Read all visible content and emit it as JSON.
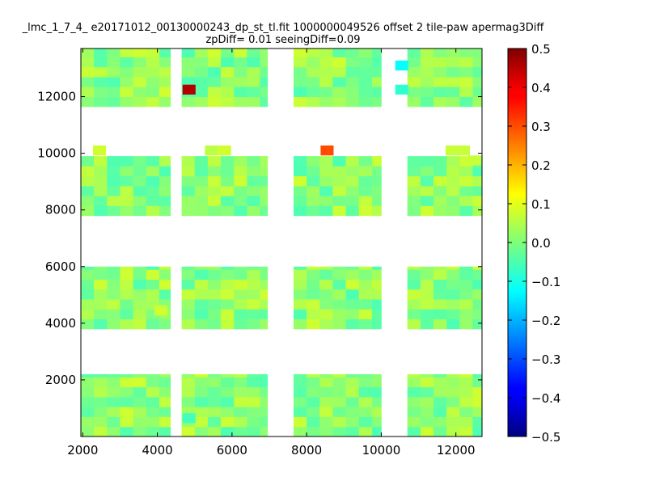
{
  "chart_data": {
    "type": "heatmap",
    "title": "_lmc_1_7_4_ e20171012_00130000243_dp_st_tl.fit 1000000049526 offset 2 tile-paw apermag3Diff",
    "subtitle": "zpDiff= 0.01 seeingDiff=0.09",
    "xlabel": "",
    "ylabel": "",
    "xlim": [
      1950,
      12700
    ],
    "ylim": [
      0,
      13700
    ],
    "x_ticks": [
      "2000",
      "4000",
      "6000",
      "8000",
      "10000",
      "12000"
    ],
    "y_ticks": [
      "2000",
      "4000",
      "6000",
      "8000",
      "10000",
      "12000"
    ],
    "colorbar": {
      "colormap": "jet",
      "range": [
        -0.5,
        0.5
      ],
      "ticks": [
        "0.5",
        "0.4",
        "0.3",
        "0.2",
        "0.1",
        "0.0",
        "−0.1",
        "−0.2",
        "−0.3",
        "−0.4",
        "−0.5"
      ]
    },
    "grid": false,
    "block_columns": [
      [
        1950,
        4350
      ],
      [
        4650,
        6950
      ],
      [
        7650,
        10000
      ],
      [
        10700,
        12700
      ]
    ],
    "block_rows": [
      [
        0,
        2200
      ],
      [
        3800,
        6000
      ],
      [
        7800,
        9900
      ],
      [
        11650,
        13700
      ]
    ],
    "typical_value_range": [
      -0.05,
      0.08
    ],
    "notable_cells": [
      {
        "x": 4850,
        "y": 12250,
        "value": 0.45
      },
      {
        "x": 8550,
        "y": 10100,
        "value": 0.3
      },
      {
        "x": 2450,
        "y": 10100,
        "value": 0.08
      },
      {
        "x": 5450,
        "y": 10100,
        "value": 0.06
      },
      {
        "x": 5800,
        "y": 10100,
        "value": 0.08
      },
      {
        "x": 11900,
        "y": 10100,
        "value": 0.07
      },
      {
        "x": 12200,
        "y": 10100,
        "value": 0.07
      },
      {
        "x": 12500,
        "y": 9750,
        "value": 0.07
      },
      {
        "x": 10550,
        "y": 13100,
        "value": -0.12
      },
      {
        "x": 10550,
        "y": 12250,
        "value": -0.08
      },
      {
        "x": 4100,
        "y": 4450,
        "value": 0.08
      },
      {
        "x": 4850,
        "y": 650,
        "value": -0.06
      }
    ]
  }
}
